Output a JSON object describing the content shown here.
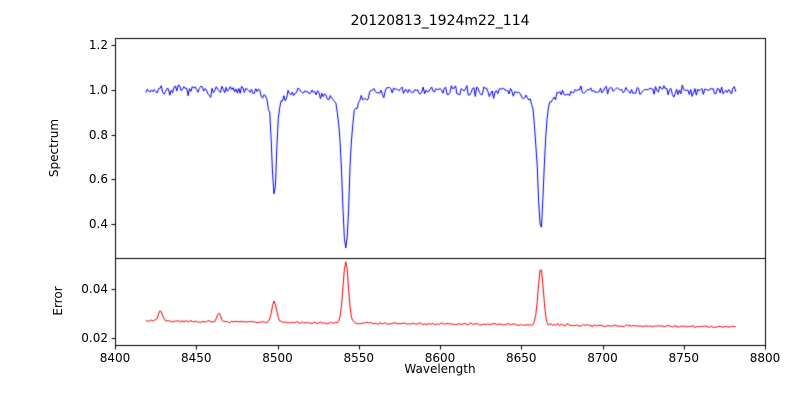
{
  "chart_data": {
    "type": "line",
    "title": "20120813_1924m22_114",
    "xlabel": "Wavelength",
    "grid": false,
    "legend": "none",
    "axis_color": "#000000",
    "background_color": "#ffffff",
    "x_axis": {
      "range": [
        8400,
        8800
      ],
      "tick_values": [
        8400,
        8450,
        8500,
        8550,
        8600,
        8650,
        8700,
        8750,
        8800
      ],
      "tick_labels": [
        "8400",
        "8450",
        "8500",
        "8550",
        "8600",
        "8650",
        "8700",
        "8750",
        "8800"
      ]
    },
    "data_x_range": [
      8419,
      8782
    ],
    "n_points": 420,
    "noise_seed": 7,
    "panels": [
      {
        "name": "spectrum",
        "ylabel": "Spectrum",
        "color": "#0000ee",
        "ylim": [
          0.25,
          1.23
        ],
        "tick_values": [
          0.4,
          0.6,
          0.8,
          1.0,
          1.2
        ],
        "tick_labels": [
          "0.4",
          "0.6",
          "0.8",
          "1.0",
          "1.2"
        ],
        "baseline": 1.0,
        "noise_amplitude": 0.032,
        "features": [
          {
            "type": "absorption",
            "center": 8498,
            "depth": 0.47,
            "width": 1.3
          },
          {
            "type": "absorption",
            "center": 8542,
            "depth": 0.7,
            "width": 2.0
          },
          {
            "type": "absorption",
            "center": 8662,
            "depth": 0.62,
            "width": 1.8
          }
        ]
      },
      {
        "name": "error",
        "ylabel": "Error",
        "color": "#ee0000",
        "ylim": [
          0.017,
          0.053
        ],
        "tick_values": [
          0.02,
          0.04
        ],
        "tick_labels": [
          "0.02",
          "0.04"
        ],
        "baseline_start": 0.027,
        "baseline_end": 0.0245,
        "noise_amplitude": 0.0007,
        "features": [
          {
            "type": "spike",
            "center": 8428,
            "height": 0.0045,
            "width": 1.2
          },
          {
            "type": "spike",
            "center": 8464,
            "height": 0.0035,
            "width": 1.1
          },
          {
            "type": "spike",
            "center": 8498,
            "height": 0.0085,
            "width": 1.4
          },
          {
            "type": "spike",
            "center": 8542,
            "height": 0.0255,
            "width": 1.6
          },
          {
            "type": "spike",
            "center": 8662,
            "height": 0.0235,
            "width": 1.6
          }
        ]
      }
    ]
  }
}
